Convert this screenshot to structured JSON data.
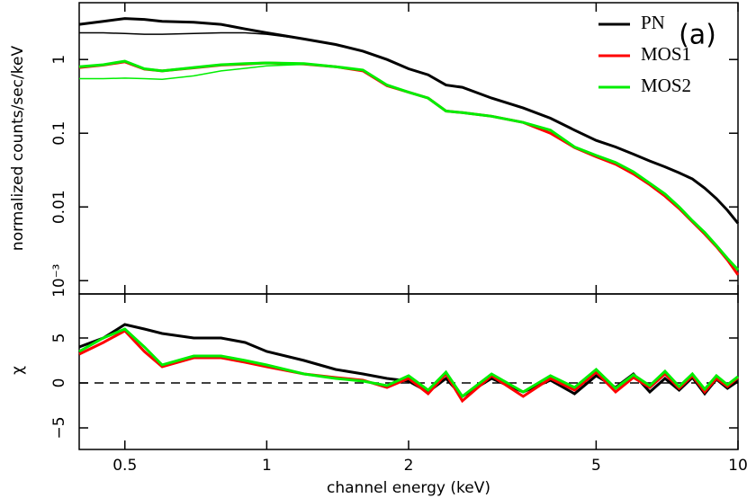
{
  "chart_data": [
    {
      "type": "line",
      "ylabel": "normalized counts/sec/keV",
      "annotation": "(a)",
      "log_x": true,
      "log_y": true,
      "legend": "upper right",
      "xlim": [
        0.4,
        10
      ],
      "xticks": [
        0.5,
        1,
        2,
        5,
        10
      ],
      "ylim": [
        0.00066,
        5.9
      ],
      "yticks": [
        {
          "value": 0.001,
          "label": "10⁻³"
        },
        0.01,
        0.1,
        1
      ],
      "x": [
        0.4,
        0.45,
        0.5,
        0.55,
        0.6,
        0.7,
        0.8,
        0.9,
        1.0,
        1.2,
        1.4,
        1.6,
        1.8,
        2.0,
        2.2,
        2.4,
        2.6,
        3.0,
        3.5,
        4,
        4.5,
        5,
        5.5,
        6,
        6.5,
        7,
        7.5,
        8,
        8.5,
        9,
        9.5,
        10
      ],
      "series": [
        {
          "name": "PN",
          "color": "#000000",
          "values": [
            3.0,
            3.3,
            3.6,
            3.5,
            3.3,
            3.2,
            3.0,
            2.6,
            2.3,
            1.9,
            1.6,
            1.3,
            1.0,
            0.75,
            0.62,
            0.45,
            0.42,
            0.3,
            0.22,
            0.16,
            0.11,
            0.08,
            0.065,
            0.052,
            0.042,
            0.035,
            0.029,
            0.024,
            0.018,
            0.013,
            0.009,
            0.006
          ],
          "model_values": [
            2.3,
            2.3,
            2.25,
            2.2,
            2.2,
            2.25,
            2.3,
            2.3,
            2.2,
            1.9,
            1.6,
            1.3,
            1.0,
            0.75,
            0.62,
            0.45,
            0.42,
            0.3,
            0.22,
            0.16,
            0.11,
            0.08,
            0.065,
            0.052,
            0.042,
            0.035,
            0.029,
            0.024,
            0.018,
            0.013,
            0.009,
            0.006
          ]
        },
        {
          "name": "MOS1",
          "color": "#ff0000",
          "values": [
            0.78,
            0.84,
            0.93,
            0.74,
            0.7,
            0.77,
            0.84,
            0.87,
            0.9,
            0.87,
            0.8,
            0.7,
            0.44,
            0.36,
            0.3,
            0.2,
            0.19,
            0.17,
            0.14,
            0.1,
            0.064,
            0.048,
            0.038,
            0.028,
            0.02,
            0.014,
            0.0095,
            0.0063,
            0.0043,
            0.0029,
            0.0019,
            0.0012
          ]
        },
        {
          "name": "MOS2",
          "color": "#00ee00",
          "values": [
            0.8,
            0.85,
            0.95,
            0.75,
            0.7,
            0.78,
            0.85,
            0.88,
            0.9,
            0.88,
            0.8,
            0.72,
            0.45,
            0.36,
            0.3,
            0.2,
            0.19,
            0.17,
            0.14,
            0.11,
            0.065,
            0.05,
            0.04,
            0.03,
            0.021,
            0.015,
            0.01,
            0.0065,
            0.0045,
            0.003,
            0.002,
            0.0014
          ],
          "model_values": [
            0.55,
            0.55,
            0.56,
            0.55,
            0.54,
            0.6,
            0.7,
            0.76,
            0.82,
            0.86,
            0.8,
            0.72,
            0.45,
            0.36,
            0.3,
            0.2,
            0.19,
            0.17,
            0.14,
            0.11,
            0.065,
            0.05,
            0.04,
            0.03,
            0.021,
            0.015,
            0.01,
            0.0065,
            0.0045,
            0.003,
            0.002,
            0.0014
          ]
        }
      ]
    },
    {
      "type": "line",
      "ylabel": "χ",
      "xlabel": "channel energy (keV)",
      "log_x": true,
      "xlim": [
        0.4,
        10
      ],
      "xticks": [
        0.5,
        1,
        2,
        5,
        10
      ],
      "ylim": [
        -7.4,
        9.9
      ],
      "yticks": [
        {
          "value": -5,
          "label": "−5"
        },
        0,
        5
      ],
      "hline": 0,
      "x": [
        0.4,
        0.45,
        0.5,
        0.55,
        0.6,
        0.7,
        0.8,
        0.9,
        1.0,
        1.2,
        1.4,
        1.6,
        1.8,
        2.0,
        2.2,
        2.4,
        2.6,
        3.0,
        3.5,
        4,
        4.5,
        5,
        5.5,
        6,
        6.5,
        7,
        7.5,
        8,
        8.5,
        9,
        9.5,
        10
      ],
      "series": [
        {
          "color": "#000000",
          "values": [
            4,
            5,
            6.5,
            6,
            5.5,
            5,
            5,
            4.5,
            3.5,
            2.5,
            1.5,
            1,
            0.5,
            0.2,
            -1,
            0.5,
            -1.5,
            0.5,
            -1,
            0.3,
            -1.2,
            0.8,
            -0.5,
            1,
            -1,
            0.5,
            -0.8,
            0.6,
            -1.2,
            0.4,
            -0.6,
            0.2
          ]
        },
        {
          "color": "#ff0000",
          "values": [
            3.2,
            4.5,
            5.8,
            3.5,
            1.8,
            2.8,
            2.8,
            2.3,
            1.8,
            1,
            0.6,
            0.3,
            -0.5,
            0.5,
            -1.2,
            1,
            -2,
            0.8,
            -1.5,
            0.5,
            -0.8,
            1.2,
            -1,
            0.6,
            -0.5,
            1,
            -0.6,
            0.8,
            -1,
            0.5,
            -0.4,
            0.6
          ]
        },
        {
          "color": "#00ee00",
          "values": [
            3.5,
            5,
            6,
            4,
            2,
            3,
            3,
            2.5,
            2,
            1,
            0.5,
            0.2,
            -0.3,
            0.8,
            -0.8,
            1.2,
            -1.5,
            1,
            -1,
            0.8,
            -0.5,
            1.5,
            -0.6,
            0.9,
            -0.3,
            1.3,
            -0.4,
            1,
            -0.7,
            0.8,
            -0.2,
            0.7
          ]
        }
      ]
    }
  ]
}
